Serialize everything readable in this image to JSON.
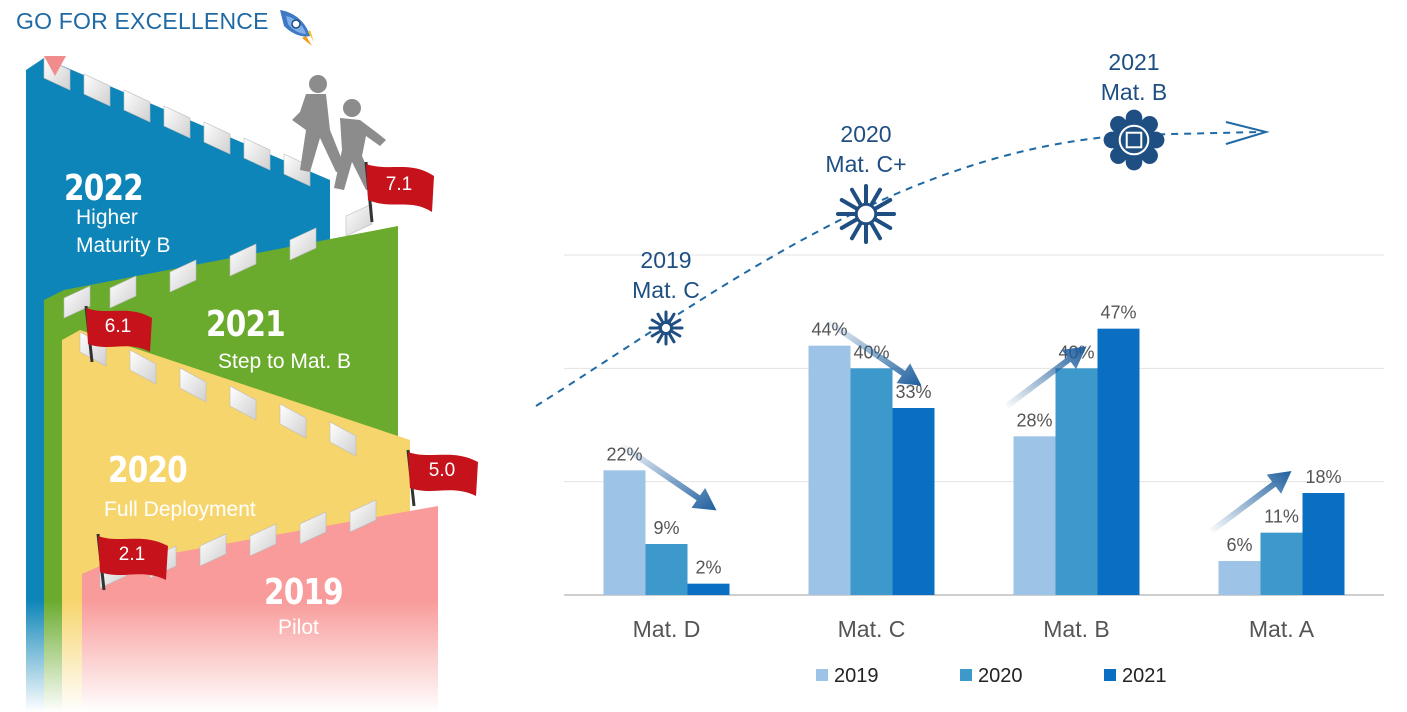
{
  "header": {
    "title": "GO FOR EXCELLENCE",
    "icon": "rocket-icon"
  },
  "stairs": [
    {
      "year": "2022",
      "label": "Higher Maturity B",
      "label_lines": [
        "Higher",
        "Maturity B"
      ],
      "color": "#0e85b8"
    },
    {
      "year": "2021",
      "label": "Step to Mat. B",
      "color": "#6aab2e",
      "flag": "6.1"
    },
    {
      "year": "2020",
      "label": "Full Deployment",
      "color": "#f7d56d",
      "flag": "5.0"
    },
    {
      "year": "2019",
      "label": "Pilot",
      "color": "#f89b9a",
      "flag": "2.1"
    }
  ],
  "top_flag": "7.1",
  "flag_color": "#c5121b",
  "path_markers": [
    {
      "year": "2019",
      "level": "Mat. C",
      "icon": "snowflake-icon"
    },
    {
      "year": "2020",
      "level": "Mat. C+",
      "icon": "snowflake-icon"
    },
    {
      "year": "2021",
      "level": "Mat. B",
      "icon": "emblem-icon"
    }
  ],
  "chart_data": {
    "type": "bar",
    "categories": [
      "Mat. D",
      "Mat. C",
      "Mat. B",
      "Mat. A"
    ],
    "series": [
      {
        "name": "2019",
        "values": [
          22,
          44,
          28,
          6
        ],
        "color": "#9dc3e6"
      },
      {
        "name": "2020",
        "values": [
          9,
          40,
          40,
          11
        ],
        "color": "#3d99cc"
      },
      {
        "name": "2021",
        "values": [
          2,
          33,
          47,
          18
        ],
        "color": "#0a6fc2"
      }
    ],
    "value_labels": [
      [
        "22%",
        "44%",
        "28%",
        "6%"
      ],
      [
        "9%",
        "40%",
        "40%",
        "11%"
      ],
      [
        "2%",
        "33%",
        "47%",
        "18%"
      ]
    ],
    "trends": [
      "down",
      "down",
      "up",
      "up"
    ],
    "ylim": [
      0,
      60
    ],
    "grid": true,
    "legend": "bottom",
    "title": "",
    "xlabel": "",
    "ylabel": ""
  }
}
